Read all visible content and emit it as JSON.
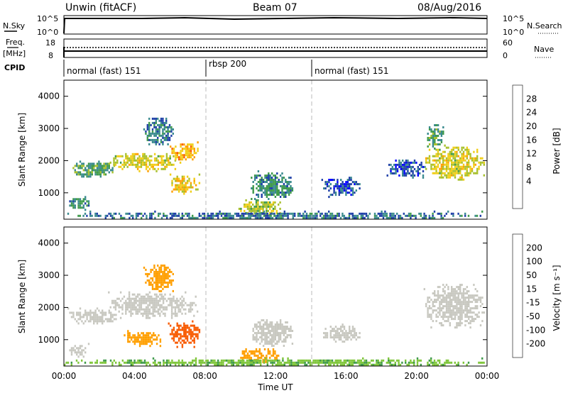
{
  "header": {
    "station": "Unwin (fitACF)",
    "beam": "Beam 07",
    "date": "08/Aug/2016"
  },
  "top_panels": {
    "nsky_label": "N.Sky",
    "nsky_ticks": [
      "10^5",
      "10^0"
    ],
    "nsearch_label": "N.Search",
    "nsearch_ticks": [
      "10^5",
      "10^0"
    ],
    "freq_label_1": "Freq.",
    "freq_label_2": "[MHz]",
    "freq_ticks": [
      "18",
      "8"
    ],
    "nave_label": "Nave",
    "nave_ticks": [
      "60",
      "0"
    ],
    "cpid_label": "CPID",
    "cpid_segments": [
      {
        "label": "normal (fast) 151",
        "start_h": 0
      },
      {
        "label": "rbsp 200",
        "start_h": 8
      },
      {
        "label": "normal (fast) 151",
        "start_h": 14
      }
    ]
  },
  "x_axis": {
    "label": "Time UT",
    "ticks": [
      "00:00",
      "04:00",
      "08:00",
      "12:00",
      "16:00",
      "20:00",
      "00:00"
    ]
  },
  "power_colorbar": {
    "title": "Power [dB]",
    "ticks": [
      "28",
      "24",
      "20",
      "16",
      "12",
      "8",
      "4"
    ],
    "colors": [
      "#e00000",
      "#f85a00",
      "#ff9f00",
      "#f1ce18",
      "#a8c02c",
      "#3f9a4b",
      "#3a8a8e",
      "#1f3fa8",
      "#0000ff"
    ]
  },
  "velocity_colorbar": {
    "title": "Velocity [m s⁻¹]",
    "ticks": [
      "200",
      "100",
      "50",
      "15",
      "-15",
      "-50",
      "-100",
      "-200"
    ],
    "colors": [
      "#1f3fa8",
      "#2c6e8d",
      "#3f9a4b",
      "#7fc63a",
      "#c8c8c0",
      "#f2c21c",
      "#ff9f00",
      "#f85a00",
      "#e00000"
    ]
  },
  "chart_data": [
    {
      "type": "heatmap",
      "ylabel": "Slant Range [km]",
      "xlabel": "Time UT",
      "xlim": [
        0,
        24
      ],
      "ylim": [
        180,
        4500
      ],
      "y_ticks": [
        1000,
        2000,
        3000,
        4000
      ],
      "colorbar": "Power [dB]",
      "regions": [
        {
          "t": [
            0.2,
            1.4
          ],
          "r": [
            500,
            900
          ],
          "v": 10
        },
        {
          "t": [
            0.2,
            3.0
          ],
          "r": [
            1500,
            2000
          ],
          "v": 12
        },
        {
          "t": [
            2.5,
            6.6
          ],
          "r": [
            1700,
            2300
          ],
          "v": 18
        },
        {
          "t": [
            6.0,
            7.6
          ],
          "r": [
            2000,
            2600
          ],
          "v": 22
        },
        {
          "t": [
            4.5,
            6.2
          ],
          "r": [
            2500,
            3400
          ],
          "v": 8
        },
        {
          "t": [
            5.9,
            7.7
          ],
          "r": [
            1000,
            1600
          ],
          "v": 20
        },
        {
          "t": [
            9.8,
            12.3
          ],
          "r": [
            300,
            800
          ],
          "v": 16
        },
        {
          "t": [
            10.5,
            13.0
          ],
          "r": [
            800,
            1700
          ],
          "v": 10
        },
        {
          "t": [
            14.6,
            16.8
          ],
          "r": [
            900,
            1500
          ],
          "v": 6
        },
        {
          "t": [
            18.3,
            20.5
          ],
          "r": [
            1500,
            2100
          ],
          "v": 6
        },
        {
          "t": [
            20.4,
            23.8
          ],
          "r": [
            1400,
            2500
          ],
          "v": 18
        },
        {
          "t": [
            20.5,
            21.5
          ],
          "r": [
            2400,
            3200
          ],
          "v": 12
        },
        {
          "t": [
            0.0,
            24.0
          ],
          "r": [
            200,
            450
          ],
          "v": 8
        }
      ]
    },
    {
      "type": "heatmap",
      "ylabel": "Slant Range [km]",
      "xlabel": "Time UT",
      "xlim": [
        0,
        24
      ],
      "ylim": [
        180,
        4500
      ],
      "y_ticks": [
        1000,
        2000,
        3000,
        4000
      ],
      "colorbar": "Velocity [m s⁻¹]",
      "regions": [
        {
          "t": [
            0.2,
            1.4
          ],
          "r": [
            500,
            900
          ],
          "v": 0
        },
        {
          "t": [
            0.2,
            3.0
          ],
          "r": [
            1500,
            2000
          ],
          "v": 0
        },
        {
          "t": [
            2.5,
            7.6
          ],
          "r": [
            1700,
            2500
          ],
          "v": 0
        },
        {
          "t": [
            4.5,
            6.2
          ],
          "r": [
            2500,
            3400
          ],
          "v": -60
        },
        {
          "t": [
            5.9,
            7.7
          ],
          "r": [
            800,
            1600
          ],
          "v": -90
        },
        {
          "t": [
            3.2,
            5.5
          ],
          "r": [
            800,
            1300
          ],
          "v": -40
        },
        {
          "t": [
            9.8,
            12.3
          ],
          "r": [
            300,
            800
          ],
          "v": -70
        },
        {
          "t": [
            10.5,
            13.0
          ],
          "r": [
            800,
            1700
          ],
          "v": 0
        },
        {
          "t": [
            14.6,
            16.8
          ],
          "r": [
            900,
            1500
          ],
          "v": 0
        },
        {
          "t": [
            20.4,
            23.8
          ],
          "r": [
            1400,
            2800
          ],
          "v": 0
        },
        {
          "t": [
            0.0,
            24.0
          ],
          "r": [
            200,
            450
          ],
          "v": 30
        }
      ]
    }
  ]
}
